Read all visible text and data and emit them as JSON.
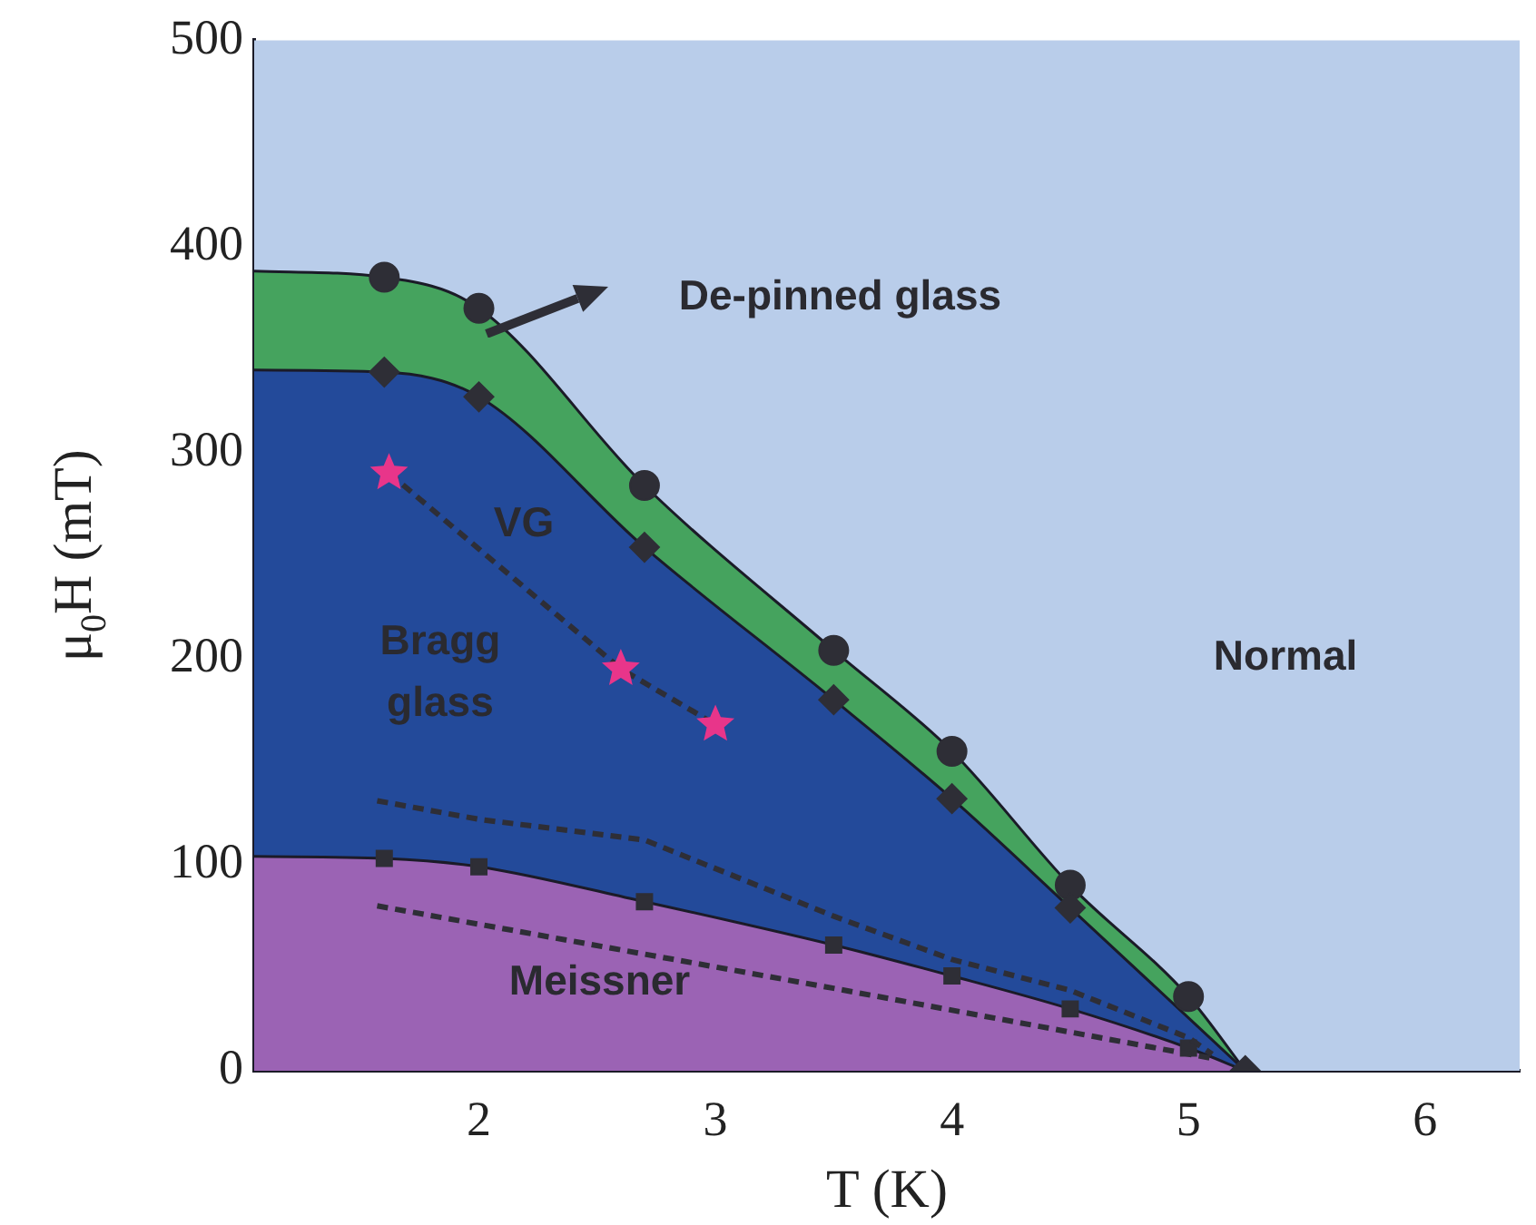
{
  "chart_data": {
    "type": "area",
    "xlabel": "T (K)",
    "ylabel": "μ$_{0}$H (mT)",
    "xlim": [
      1.05,
      6.4
    ],
    "xticks": [
      2,
      3,
      4,
      5,
      6
    ],
    "ylim": [
      0,
      500
    ],
    "yticks": [
      0,
      100,
      200,
      300,
      400,
      500
    ],
    "grid": false,
    "legend": false,
    "bands": [
      {
        "axis": "y",
        "from": 0,
        "to": 500,
        "color": "#b9cdea"
      }
    ],
    "series": [
      {
        "color": "#45a35e",
        "marker": "none",
        "x": [
          1.05,
          1.6,
          2.0,
          2.7,
          3.5,
          4.0,
          4.5,
          5.0,
          5.24
        ],
        "values": [
          388,
          385,
          370,
          284,
          204,
          155,
          90,
          36,
          0
        ]
      },
      {
        "color": "#234a9a",
        "marker": "none",
        "x": [
          1.05,
          1.6,
          2.0,
          2.7,
          3.5,
          4.0,
          4.5,
          5.24
        ],
        "values": [
          340,
          339,
          327,
          254,
          180,
          132,
          79,
          0
        ]
      },
      {
        "color": "#9b63b4",
        "marker": "none",
        "x": [
          1.05,
          1.6,
          2.0,
          2.7,
          3.5,
          4.0,
          4.5,
          5.0,
          5.24
        ],
        "values": [
          104,
          103,
          99,
          82,
          61,
          46,
          30,
          11,
          0
        ]
      },
      {
        "type": "scatter",
        "color": "#2e2e36",
        "marker": "circle",
        "x": [
          1.6,
          2.0,
          2.7,
          3.5,
          4.0,
          4.5,
          5.0
        ],
        "values": [
          385,
          370,
          284,
          204,
          155,
          90,
          36
        ]
      },
      {
        "type": "scatter",
        "color": "#2e2e36",
        "marker": "diamond",
        "x": [
          1.6,
          2.0,
          2.7,
          3.5,
          4.0,
          4.5,
          5.24
        ],
        "values": [
          339,
          327,
          254,
          180,
          132,
          79,
          0
        ]
      },
      {
        "type": "scatter",
        "color": "#2e2e36",
        "marker": "square",
        "x": [
          1.6,
          2.0,
          2.7,
          3.5,
          4.0,
          4.5,
          5.0
        ],
        "values": [
          103,
          99,
          82,
          61,
          46,
          30,
          11
        ]
      },
      {
        "type": "line",
        "color": "#e8358a",
        "marker": "star",
        "line_style": "dashed",
        "x": [
          1.62,
          2.6,
          3.0
        ],
        "values": [
          290,
          195,
          168
        ]
      },
      {
        "type": "line",
        "color": "#2e2e36",
        "line_style": "dashed",
        "x": [
          1.57,
          2.0,
          2.7,
          3.5,
          4.0,
          4.5,
          5.0,
          5.1
        ],
        "values": [
          131,
          122,
          112,
          75,
          54,
          39,
          16,
          8
        ]
      },
      {
        "type": "line",
        "color": "#2e2e36",
        "line_style": "dashed",
        "x": [
          1.57,
          3.5,
          5.1
        ],
        "values": [
          80,
          40,
          6
        ]
      }
    ],
    "annotations": [
      "De-pinned glass",
      "VG",
      "Bragg\nglass",
      "Normal",
      "Meissner"
    ]
  }
}
